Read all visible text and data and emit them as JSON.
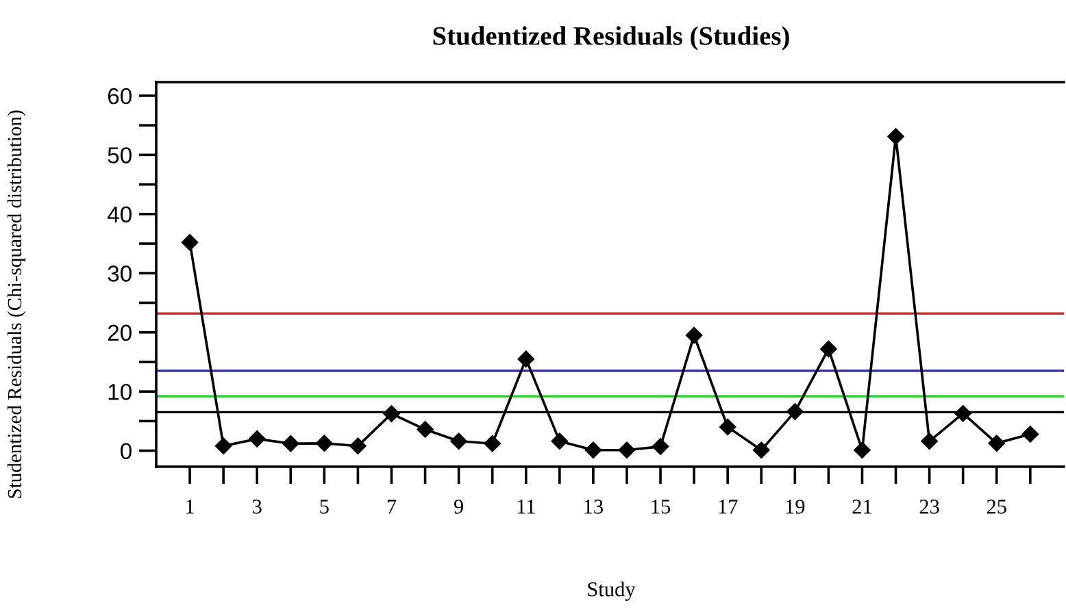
{
  "chart_data": {
    "type": "line",
    "title": "Studentized Residuals (Studies)",
    "xlabel": "Study",
    "ylabel": "Studentized Residuals (Chi-squared distribution)",
    "x": [
      1,
      2,
      3,
      4,
      5,
      6,
      7,
      8,
      9,
      10,
      11,
      12,
      13,
      14,
      15,
      16,
      17,
      18,
      19,
      20,
      21,
      22,
      23,
      24,
      25,
      26
    ],
    "series": [
      {
        "color": "#000000",
        "values": [
          35.2,
          0.8,
          2.0,
          1.2,
          1.25,
          0.8,
          6.25,
          3.6,
          1.6,
          1.2,
          15.5,
          1.6,
          0.1,
          0.1,
          0.7,
          19.5,
          4.0,
          0.1,
          6.6,
          17.2,
          0.1,
          53.1,
          1.6,
          6.3,
          1.25,
          2.8
        ]
      }
    ],
    "marker": "diamond",
    "line_style": "solid",
    "xlim": [
      0,
      27
    ],
    "xticks": [
      1,
      {
        "value": 2,
        "label": null
      },
      3,
      {
        "value": 4,
        "label": null
      },
      5,
      {
        "value": 6,
        "label": null
      },
      7,
      {
        "value": 8,
        "label": null
      },
      9,
      {
        "value": 10,
        "label": null
      },
      11,
      {
        "value": 12,
        "label": null
      },
      13,
      {
        "value": 14,
        "label": null
      },
      15,
      {
        "value": 16,
        "label": null
      },
      17,
      {
        "value": 18,
        "label": null
      },
      19,
      {
        "value": 20,
        "label": null
      },
      21,
      {
        "value": 22,
        "label": null
      },
      23,
      {
        "value": 24,
        "label": null
      },
      25,
      {
        "value": 26,
        "label": null
      }
    ],
    "ylim": [
      -2.7,
      62.3
    ],
    "yticks": [
      0,
      {
        "value": 5,
        "label": null
      },
      10,
      {
        "value": 15,
        "label": null
      },
      20,
      {
        "value": 25,
        "label": null
      },
      30,
      {
        "value": 35,
        "label": null
      },
      40,
      {
        "value": 45,
        "label": null
      },
      50,
      {
        "value": 55,
        "label": null
      },
      60
    ],
    "ref_lines": [
      {
        "axis": "y",
        "value": 23.2,
        "color": "#cc2222"
      },
      {
        "axis": "y",
        "value": 13.5,
        "color": "#2a2aa0"
      },
      {
        "axis": "y",
        "value": 9.2,
        "color": "#22cc22"
      },
      {
        "axis": "y",
        "value": 6.5,
        "color": "#000000"
      }
    ],
    "grid": false,
    "legend": false
  }
}
